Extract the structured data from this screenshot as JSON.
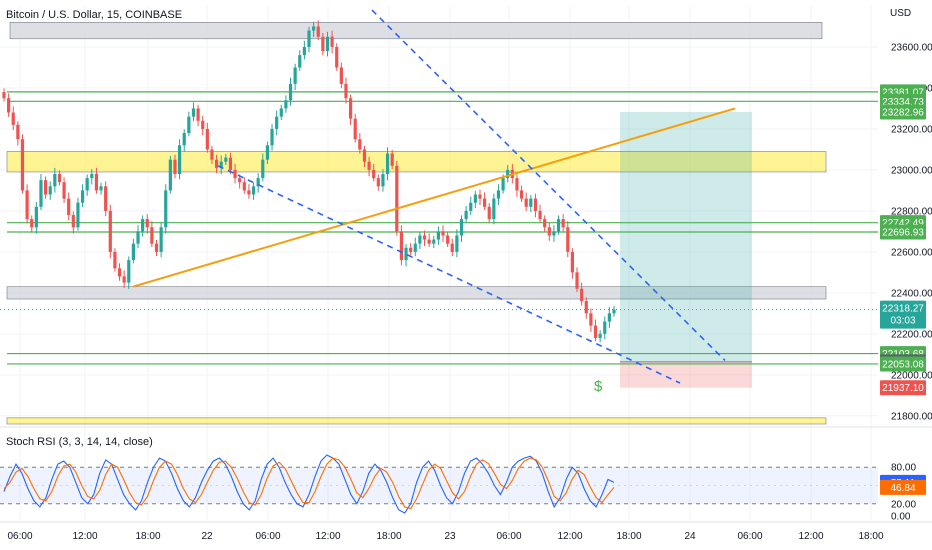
{
  "header": {
    "symbol_title": "Bitcoin / U.S. Dollar, 15, COINBASE",
    "currency": "USD"
  },
  "colors": {
    "up": "#26a69a",
    "down": "#ef5350",
    "support_line": "#4caf50",
    "trend_orange": "#f59e0b",
    "trend_blue": "#2962ff",
    "zone_gray": "#d1d4dc",
    "zone_yellow": "#ffeb3b",
    "target_zone": "#26a69a",
    "stop_zone": "#ef5350",
    "stoch_k": "#2962ff",
    "stoch_d": "#ff6d00"
  },
  "chart_data": [
    {
      "type": "candlestick",
      "title": "Bitcoin / U.S. Dollar, 15, COINBASE",
      "ylabel": "USD",
      "ylim": [
        21760,
        23800
      ],
      "x_ticks": [
        "06:00",
        "12:00",
        "18:00",
        "22",
        "06:00",
        "12:00",
        "18:00",
        "23",
        "06:00",
        "12:00",
        "18:00",
        "24",
        "06:00",
        "12:00",
        "18:00"
      ],
      "y_ticks": [
        21800,
        22000,
        22200,
        22400,
        22600,
        22800,
        23000,
        23200,
        23400,
        23600
      ],
      "closes": [
        23350,
        23280,
        23220,
        23150,
        22900,
        22760,
        22720,
        22820,
        22950,
        22880,
        22920,
        22980,
        22940,
        22860,
        22780,
        22720,
        22840,
        22900,
        22960,
        22980,
        22900,
        22920,
        22800,
        22600,
        22520,
        22480,
        22450,
        22560,
        22640,
        22700,
        22760,
        22720,
        22640,
        22600,
        22720,
        22900,
        23050,
        22980,
        23120,
        23180,
        23260,
        23300,
        23240,
        23200,
        23100,
        23050,
        23010,
        23040,
        23060,
        23000,
        22960,
        22940,
        22900,
        22880,
        22920,
        22960,
        23050,
        23120,
        23200,
        23260,
        23300,
        23340,
        23420,
        23500,
        23560,
        23600,
        23680,
        23700,
        23650,
        23580,
        23650,
        23600,
        23500,
        23420,
        23350,
        23250,
        23150,
        23100,
        23040,
        23000,
        22960,
        22920,
        22980,
        23080,
        23020,
        22700,
        22560,
        22620,
        22600,
        22640,
        22680,
        22660,
        22640,
        22660,
        22700,
        22680,
        22640,
        22600,
        22680,
        22760,
        22800,
        22840,
        22880,
        22860,
        22820,
        22760,
        22860,
        22900,
        22960,
        23000,
        22960,
        22900,
        22860,
        22820,
        22860,
        22800,
        22760,
        22720,
        22680,
        22700,
        22760,
        22720,
        22600,
        22500,
        22420,
        22360,
        22300,
        22240,
        22180,
        22200,
        22260,
        22300,
        22318
      ],
      "current_price": "22318.27",
      "countdown": "03:03",
      "price_labels": [
        {
          "text": "23381.07",
          "value": 23381.07,
          "color": "#4caf50"
        },
        {
          "text": "23334.73",
          "value": 23334.73,
          "color": "#4caf50"
        },
        {
          "text": "23282.96",
          "value": 23282.96,
          "color": "#4caf50"
        },
        {
          "text": "22742.49",
          "value": 22742.49,
          "color": "#4caf50"
        },
        {
          "text": "22696.93",
          "value": 22696.93,
          "color": "#4caf50"
        },
        {
          "text": "22103.68",
          "value": 22103.68,
          "color": "#4caf50"
        },
        {
          "text": "22063.00",
          "value": 22063.0,
          "color": "#5d606b"
        },
        {
          "text": "22053.08",
          "value": 22053.08,
          "color": "#4caf50"
        },
        {
          "text": "21937.10",
          "value": 21937.1,
          "color": "#ef5350"
        }
      ],
      "levels": [
        23381.07,
        23334.73,
        22742.49,
        22696.93,
        22103.68,
        22053.08
      ],
      "zones": [
        {
          "name": "gray-top",
          "from": 23640,
          "to": 23720,
          "color": "#d1d4dc"
        },
        {
          "name": "yellow-mid",
          "from": 22990,
          "to": 23090,
          "color": "#ffeb3b"
        },
        {
          "name": "gray-low",
          "from": 22370,
          "to": 22430,
          "color": "#d1d4dc"
        },
        {
          "name": "yellow-bottom",
          "from": 21760,
          "to": 21790,
          "color": "#ffeb3b"
        }
      ],
      "position": {
        "entry": 22063.0,
        "target": 23282.96,
        "stop": 21937.1
      },
      "marker": "$"
    },
    {
      "type": "line",
      "title": "Stoch RSI (3, 3, 14, 14, close)",
      "ylim": [
        0,
        100
      ],
      "y_ticks": [
        0,
        20,
        80
      ],
      "band": [
        20,
        80
      ],
      "value_labels": [
        {
          "text": "55.11",
          "value": 55.11,
          "color": "#2962ff"
        },
        {
          "text": "46.84",
          "value": 46.84,
          "color": "#ff6d00"
        }
      ],
      "series": [
        {
          "values": [
            40,
            65,
            85,
            70,
            45,
            25,
            15,
            30,
            60,
            85,
            90,
            80,
            55,
            30,
            20,
            35,
            70,
            92,
            85,
            60,
            35,
            20,
            10,
            25,
            55,
            80,
            95,
            90,
            70,
            45,
            25,
            15,
            30,
            55,
            75,
            90,
            95,
            85,
            65,
            40,
            20,
            10,
            25,
            60,
            85,
            95,
            80,
            55,
            35,
            20,
            15,
            35,
            65,
            90,
            100,
            95,
            85,
            60,
            35,
            20,
            40,
            70,
            85,
            75,
            55,
            30,
            10,
            5,
            20,
            55,
            80,
            90,
            75,
            50,
            30,
            20,
            40,
            70,
            90,
            95,
            85,
            70,
            50,
            35,
            55,
            80,
            90,
            95,
            98,
            90,
            70,
            40,
            15,
            30,
            60,
            80,
            70,
            45,
            25,
            15,
            35,
            60,
            55
          ]
        },
        {
          "values": [
            45,
            55,
            72,
            78,
            65,
            45,
            28,
            25,
            40,
            65,
            82,
            85,
            72,
            50,
            32,
            28,
            42,
            68,
            85,
            80,
            60,
            38,
            22,
            18,
            32,
            58,
            80,
            90,
            85,
            68,
            45,
            28,
            22,
            35,
            55,
            75,
            88,
            90,
            80,
            62,
            40,
            22,
            18,
            35,
            62,
            82,
            88,
            78,
            58,
            38,
            22,
            22,
            40,
            65,
            85,
            95,
            92,
            80,
            60,
            38,
            30,
            45,
            65,
            78,
            72,
            55,
            32,
            15,
            12,
            28,
            52,
            75,
            85,
            78,
            58,
            38,
            28,
            40,
            65,
            85,
            92,
            86,
            70,
            52,
            45,
            58,
            78,
            90,
            95,
            92,
            80,
            58,
            32,
            25,
            38,
            60,
            75,
            68,
            48,
            30,
            22,
            35,
            47
          ]
        }
      ]
    }
  ]
}
